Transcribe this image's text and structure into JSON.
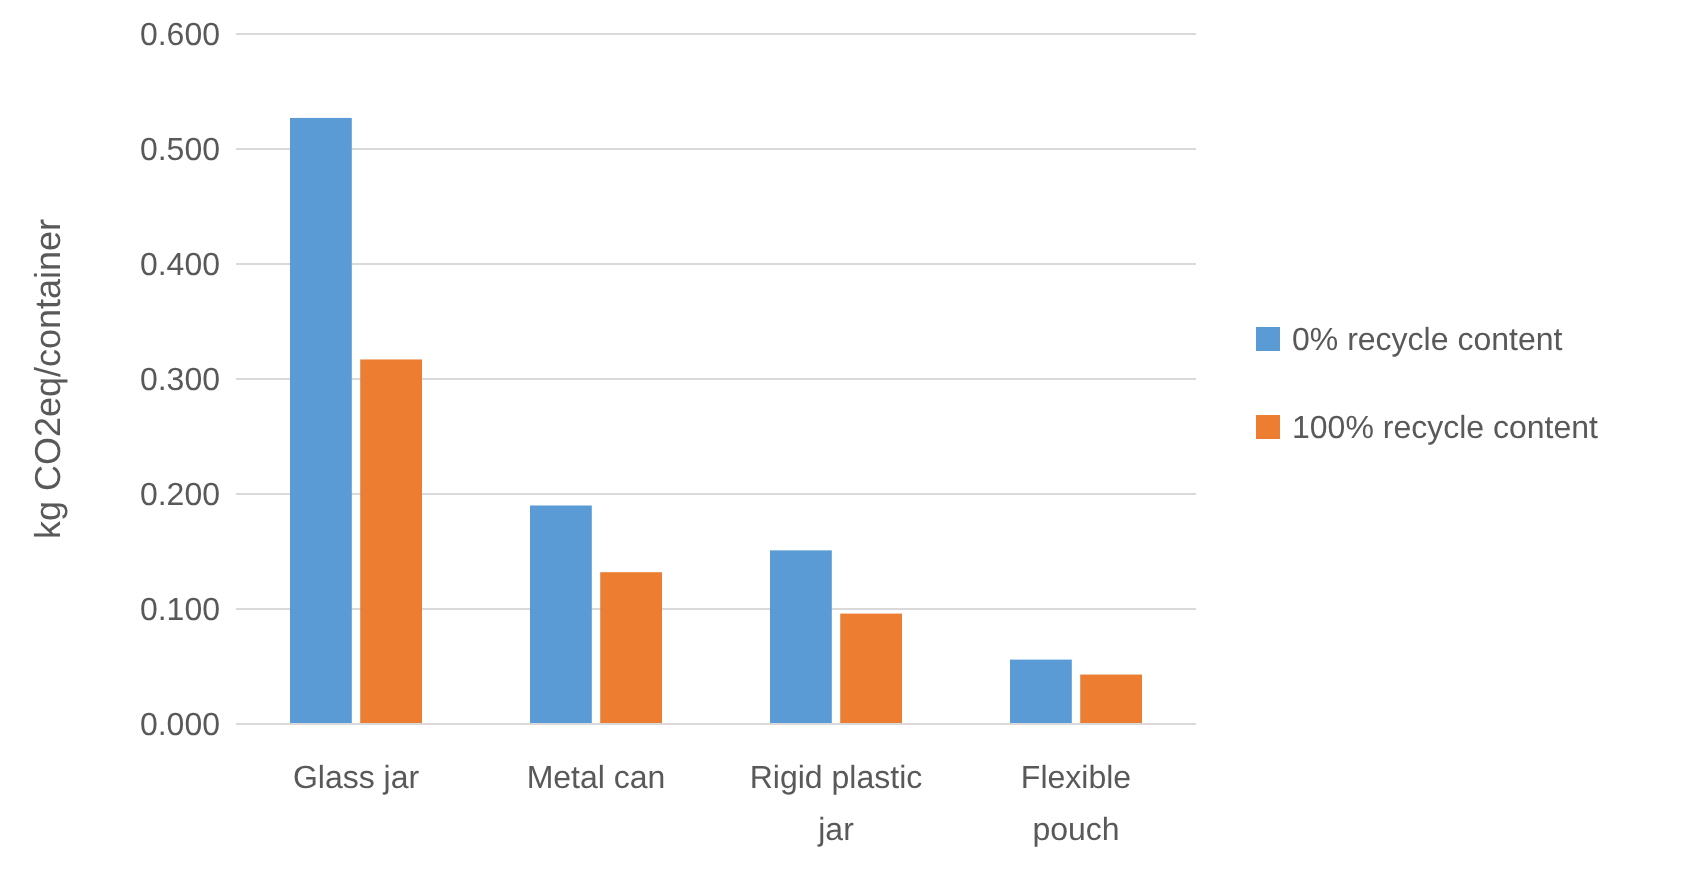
{
  "chart_data": {
    "type": "bar",
    "ylabel": "kg CO2eq/container",
    "categories": [
      "Glass jar",
      "Metal can",
      "Rigid plastic jar",
      "Flexible pouch"
    ],
    "series": [
      {
        "name": "0% recycle content",
        "color": "#5b9bd5",
        "values": [
          0.527,
          0.19,
          0.151,
          0.056
        ]
      },
      {
        "name": "100% recycle content",
        "color": "#ed7d31",
        "values": [
          0.317,
          0.132,
          0.096,
          0.043
        ]
      }
    ],
    "ylim": [
      0,
      0.6
    ],
    "yticks": [
      {
        "value": 0,
        "label": "0.000"
      },
      {
        "value": 0.1,
        "label": "0.100"
      },
      {
        "value": 0.2,
        "label": "0.200"
      },
      {
        "value": 0.3,
        "label": "0.300"
      },
      {
        "value": 0.4,
        "label": "0.400"
      },
      {
        "value": 0.5,
        "label": "0.500"
      },
      {
        "value": 0.6,
        "label": "0.600"
      }
    ],
    "grid": "y",
    "legend": "right"
  }
}
